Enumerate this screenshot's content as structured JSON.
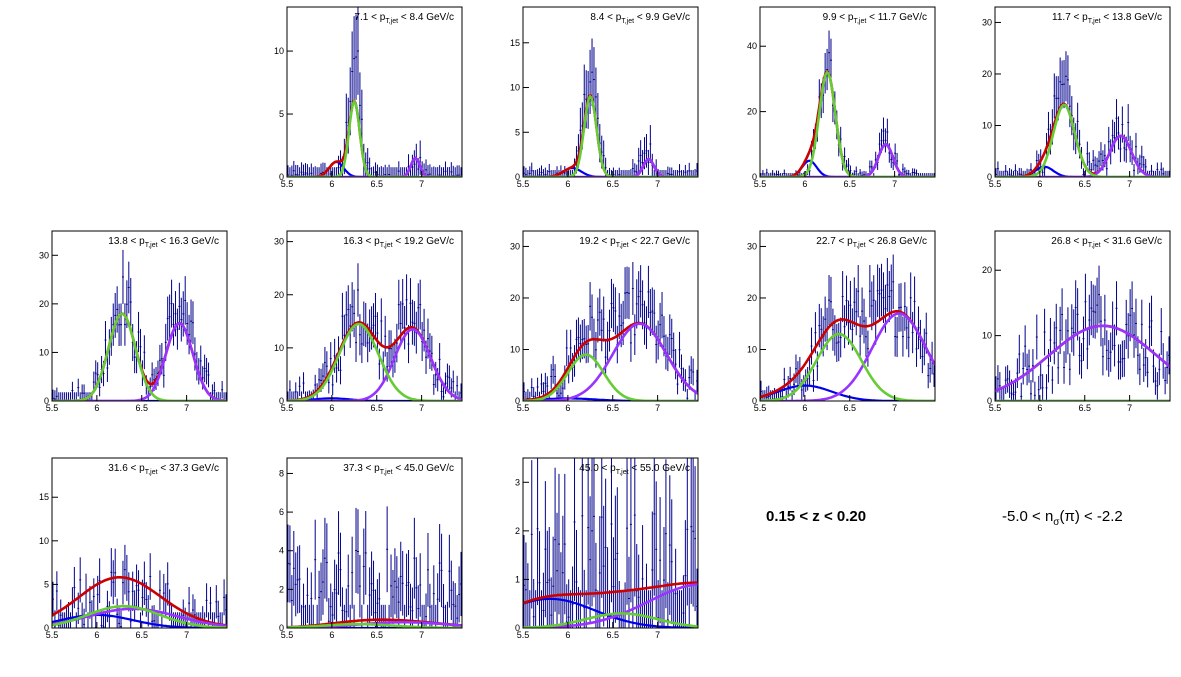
{
  "annotations": {
    "z_range": "0.15 < z < 0.20",
    "nsigma_prefix": "-5.0 < n",
    "nsigma_sub": "σ",
    "nsigma_suffix": "(π) < -2.2"
  },
  "colors": {
    "data": "#00008b",
    "total_fit": "#cc0000",
    "green": "#66cc33",
    "purple": "#9933ff",
    "blue": "#0000ee",
    "frame": "#000000"
  },
  "chart_data": [
    {
      "type": "line",
      "title_lo": "7.1",
      "title_hi": "8.4",
      "unit": "GeV/c",
      "xlim": [
        5.5,
        7.45
      ],
      "ylim": [
        0,
        13.5
      ],
      "yticks": [
        0,
        5,
        10
      ],
      "xticks": [
        "5.5",
        "6",
        "6.5",
        "7"
      ],
      "components": {
        "green": {
          "A": 6,
          "mu": 6.25,
          "sigma": 0.06
        },
        "purple": {
          "A": 1.5,
          "mu": 6.93,
          "sigma": 0.05
        },
        "blue": {
          "A": 1.2,
          "mu": 6.05,
          "sigma": 0.08
        }
      },
      "data_peaks": [
        {
          "A": 10,
          "mu": 6.25,
          "sigma": 0.06
        },
        {
          "A": 1.6,
          "mu": 6.93,
          "sigma": 0.05
        }
      ],
      "data_noise": 0.5
    },
    {
      "type": "line",
      "title_lo": "8.4",
      "title_hi": "9.9",
      "unit": "GeV/c",
      "xlim": [
        5.5,
        7.45
      ],
      "ylim": [
        0,
        19
      ],
      "yticks": [
        0,
        5,
        10,
        15
      ],
      "xticks": [
        "5.5",
        "6",
        "6.5",
        "7"
      ],
      "components": {
        "green": {
          "A": 9,
          "mu": 6.25,
          "sigma": 0.07
        },
        "purple": {
          "A": 2,
          "mu": 6.9,
          "sigma": 0.06
        },
        "blue": {
          "A": 1,
          "mu": 6.05,
          "sigma": 0.1
        }
      },
      "data_peaks": [
        {
          "A": 12,
          "mu": 6.25,
          "sigma": 0.07
        },
        {
          "A": 3,
          "mu": 6.88,
          "sigma": 0.06
        }
      ],
      "data_noise": 0.7
    },
    {
      "type": "line",
      "title_lo": "9.9",
      "title_hi": "11.7",
      "unit": "GeV/c",
      "xlim": [
        5.5,
        7.45
      ],
      "ylim": [
        0,
        52
      ],
      "yticks": [
        0,
        20,
        40
      ],
      "xticks": [
        "5.5",
        "6",
        "6.5",
        "7"
      ],
      "components": {
        "green": {
          "A": 32,
          "mu": 6.25,
          "sigma": 0.09
        },
        "purple": {
          "A": 10,
          "mu": 6.9,
          "sigma": 0.08
        },
        "blue": {
          "A": 5,
          "mu": 6.05,
          "sigma": 0.08
        }
      },
      "data_peaks": [
        {
          "A": 34,
          "mu": 6.25,
          "sigma": 0.09
        },
        {
          "A": 11,
          "mu": 6.9,
          "sigma": 0.08
        }
      ],
      "data_noise": 2
    },
    {
      "type": "line",
      "title_lo": "11.7",
      "title_hi": "13.8",
      "unit": "GeV/c",
      "xlim": [
        5.5,
        7.45
      ],
      "ylim": [
        0,
        33
      ],
      "yticks": [
        0,
        10,
        20,
        30
      ],
      "xticks": [
        "5.5",
        "6",
        "6.5",
        "7"
      ],
      "components": {
        "green": {
          "A": 14,
          "mu": 6.27,
          "sigma": 0.12
        },
        "purple": {
          "A": 8,
          "mu": 6.9,
          "sigma": 0.12
        },
        "blue": {
          "A": 2,
          "mu": 6.05,
          "sigma": 0.1
        }
      },
      "data_peaks": [
        {
          "A": 18,
          "mu": 6.27,
          "sigma": 0.12
        },
        {
          "A": 9,
          "mu": 6.9,
          "sigma": 0.12
        }
      ],
      "data_noise": 2
    },
    {
      "type": "line",
      "title_lo": "13.8",
      "title_hi": "16.3",
      "unit": "GeV/c",
      "xlim": [
        5.5,
        7.45
      ],
      "ylim": [
        0,
        35
      ],
      "yticks": [
        0,
        10,
        20,
        30
      ],
      "xticks": [
        "5.5",
        "6",
        "6.5",
        "7"
      ],
      "components": {
        "green": {
          "A": 18,
          "mu": 6.28,
          "sigma": 0.15
        },
        "purple": {
          "A": 16,
          "mu": 6.92,
          "sigma": 0.15
        },
        "blue": {
          "A": 0,
          "mu": 6.1,
          "sigma": 0.1
        }
      },
      "data_peaks": [
        {
          "A": 21,
          "mu": 6.28,
          "sigma": 0.15
        },
        {
          "A": 19,
          "mu": 6.92,
          "sigma": 0.15
        }
      ],
      "data_noise": 3
    },
    {
      "type": "line",
      "title_lo": "16.3",
      "title_hi": "19.2",
      "unit": "GeV/c",
      "xlim": [
        5.5,
        7.45
      ],
      "ylim": [
        0,
        32
      ],
      "yticks": [
        0,
        10,
        20,
        30
      ],
      "xticks": [
        "5.5",
        "6",
        "6.5",
        "7"
      ],
      "components": {
        "green": {
          "A": 14.5,
          "mu": 6.3,
          "sigma": 0.22
        },
        "purple": {
          "A": 13.5,
          "mu": 6.9,
          "sigma": 0.2
        },
        "blue": {
          "A": 0.5,
          "mu": 6.0,
          "sigma": 0.2
        }
      },
      "data_peaks": [
        {
          "A": 16,
          "mu": 6.3,
          "sigma": 0.22
        },
        {
          "A": 15,
          "mu": 6.9,
          "sigma": 0.2
        }
      ],
      "data_noise": 3
    },
    {
      "type": "line",
      "title_lo": "19.2",
      "title_hi": "22.7",
      "unit": "GeV/c",
      "xlim": [
        5.5,
        7.45
      ],
      "ylim": [
        0,
        33
      ],
      "yticks": [
        0,
        10,
        20,
        30
      ],
      "xticks": [
        "5.5",
        "6",
        "6.5",
        "7"
      ],
      "components": {
        "green": {
          "A": 9,
          "mu": 6.2,
          "sigma": 0.2
        },
        "purple": {
          "A": 15,
          "mu": 6.8,
          "sigma": 0.3
        },
        "blue": {
          "A": 0.5,
          "mu": 6.0,
          "sigma": 0.3
        }
      },
      "data_peaks": [
        {
          "A": 11,
          "mu": 6.2,
          "sigma": 0.2
        },
        {
          "A": 17,
          "mu": 6.8,
          "sigma": 0.3
        }
      ],
      "data_noise": 3
    },
    {
      "type": "line",
      "title_lo": "22.7",
      "title_hi": "26.8",
      "unit": "GeV/c",
      "xlim": [
        5.5,
        7.45
      ],
      "ylim": [
        0,
        33
      ],
      "yticks": [
        0,
        10,
        20,
        30
      ],
      "xticks": [
        "5.5",
        "6",
        "6.5",
        "7"
      ],
      "components": {
        "green": {
          "A": 13,
          "mu": 6.38,
          "sigma": 0.25
        },
        "purple": {
          "A": 17,
          "mu": 7.05,
          "sigma": 0.3
        },
        "blue": {
          "A": 3,
          "mu": 6.0,
          "sigma": 0.3
        }
      },
      "data_peaks": [
        {
          "A": 15,
          "mu": 6.38,
          "sigma": 0.25
        },
        {
          "A": 18,
          "mu": 7.05,
          "sigma": 0.3
        }
      ],
      "data_noise": 3.5
    },
    {
      "type": "line",
      "title_lo": "26.8",
      "title_hi": "31.6",
      "unit": "GeV/c",
      "xlim": [
        5.5,
        7.45
      ],
      "ylim": [
        0,
        26
      ],
      "yticks": [
        0,
        10,
        20
      ],
      "xticks": [
        "5.5",
        "6",
        "6.5",
        "7"
      ],
      "components": {
        "green": {
          "A": 0,
          "mu": 6.3,
          "sigma": 0.3
        },
        "purple": {
          "A": 11.5,
          "mu": 6.7,
          "sigma": 0.6
        },
        "blue": {
          "A": 0,
          "mu": 6.0,
          "sigma": 0.3
        }
      },
      "data_peaks": [
        {
          "A": 12,
          "mu": 6.7,
          "sigma": 0.6
        }
      ],
      "data_noise": 3.5
    },
    {
      "type": "line",
      "title_lo": "31.6",
      "title_hi": "37.3",
      "unit": "GeV/c",
      "xlim": [
        5.5,
        7.45
      ],
      "ylim": [
        0,
        19.5
      ],
      "yticks": [
        0,
        5,
        10,
        15
      ],
      "xticks": [
        "5.5",
        "6",
        "6.5",
        "7"
      ],
      "components": {
        "green": {
          "A": 2.5,
          "mu": 6.3,
          "sigma": 0.4
        },
        "purple": {
          "A": 2.2,
          "mu": 6.4,
          "sigma": 0.5
        },
        "blue": {
          "A": 1.5,
          "mu": 6.0,
          "sigma": 0.4
        }
      },
      "data_peaks": [
        {
          "A": 3,
          "mu": 6.3,
          "sigma": 0.5
        }
      ],
      "data_noise": 3
    },
    {
      "type": "line",
      "title_lo": "37.3",
      "title_hi": "45.0",
      "unit": "GeV/c",
      "xlim": [
        5.5,
        7.45
      ],
      "ylim": [
        0,
        8.8
      ],
      "yticks": [
        0,
        2,
        4,
        6,
        8
      ],
      "xticks": [
        "5.5",
        "6",
        "6.5",
        "7"
      ],
      "components": {
        "green": {
          "A": 0.2,
          "mu": 6.3,
          "sigma": 0.4
        },
        "purple": {
          "A": 0.3,
          "mu": 6.8,
          "sigma": 0.5
        },
        "blue": {
          "A": 0,
          "mu": 6.0,
          "sigma": 0.4
        }
      },
      "data_peaks": [
        {
          "A": 1.5,
          "mu": 6.5,
          "sigma": 1.0
        }
      ],
      "data_noise": 2
    },
    {
      "type": "line",
      "title_lo": "45.0",
      "title_hi": "55.0",
      "unit": "GeV/c",
      "xlim": [
        5.5,
        7.45
      ],
      "ylim": [
        0,
        3.5
      ],
      "yticks": [
        0,
        1,
        2,
        3
      ],
      "xticks": [
        "5.5",
        "6",
        "6.5",
        "7"
      ],
      "components": {
        "green": {
          "A": 0.3,
          "mu": 6.6,
          "sigma": 0.4
        },
        "purple": {
          "A": 0.9,
          "mu": 7.5,
          "sigma": 0.6
        },
        "blue": {
          "A": 0.6,
          "mu": 5.8,
          "sigma": 0.5
        }
      },
      "data_peaks": [
        {
          "A": 1.0,
          "mu": 6.5,
          "sigma": 1.0
        }
      ],
      "data_noise": 1
    }
  ]
}
